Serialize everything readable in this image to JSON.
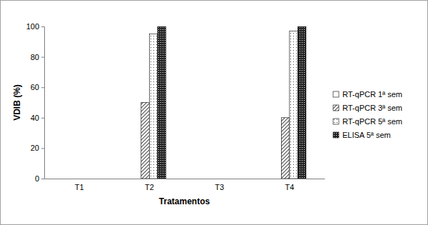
{
  "chart_data": {
    "type": "bar",
    "x_label": "Tratamentos",
    "y_label": "VDIB (%)",
    "categories": [
      "T1",
      "T2",
      "T3",
      "T4"
    ],
    "series": [
      {
        "name": "RT-qPCR 1ª sem",
        "color": "#ffffff",
        "values": [
          0,
          0,
          0,
          0
        ]
      },
      {
        "name": "RT-qPCR 3ª sem",
        "color": "#555555",
        "values": [
          0,
          50,
          0,
          40
        ]
      },
      {
        "name": "RT-qPCR 5ª sem",
        "color": "#444444",
        "values": [
          0,
          95,
          0,
          97
        ]
      },
      {
        "name": "ELISA 5ª sem",
        "color": "#222222",
        "values": [
          0,
          100,
          0,
          100
        ]
      }
    ],
    "ylim": [
      0,
      100
    ],
    "yticks": [
      0,
      20,
      40,
      60,
      80,
      100
    ],
    "grid": false,
    "legend": "right"
  }
}
